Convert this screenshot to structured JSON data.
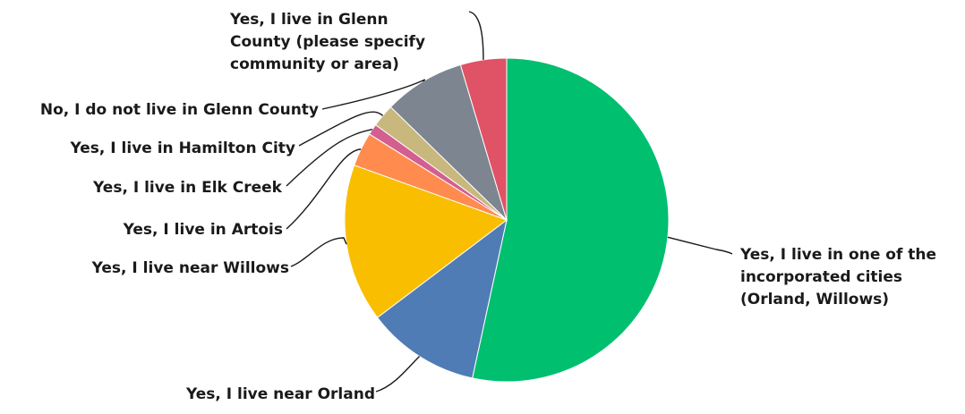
{
  "chart_data": {
    "type": "pie",
    "title": "",
    "legend": "none",
    "slices": [
      {
        "label_lines": [
          "Yes, I live in one of the",
          "incorporated cities",
          "(Orland, Willows)"
        ],
        "value": 53.4,
        "color": "#00BF6F"
      },
      {
        "label_lines": [
          "Yes, I live near Orland"
        ],
        "value": 11.3,
        "color": "#507CB6"
      },
      {
        "label_lines": [
          "Yes, I live near Willows"
        ],
        "value": 15.8,
        "color": "#F9BE00"
      },
      {
        "label_lines": [
          "Yes, I live in Artois"
        ],
        "value": 3.4,
        "color": "#FF8B4F"
      },
      {
        "label_lines": [
          "Yes, I live in Elk Creek"
        ],
        "value": 1.1,
        "color": "#D25F90"
      },
      {
        "label_lines": [
          "Yes, I live in Hamilton City"
        ],
        "value": 2.3,
        "color": "#C8B87E"
      },
      {
        "label_lines": [
          "No, I do not live in Glenn County"
        ],
        "value": 8.1,
        "color": "#7D8590"
      },
      {
        "label_lines": [
          "Yes, I live in Glenn",
          "County (please specify",
          "community or area)"
        ],
        "value": 4.6,
        "color": "#E05265"
      }
    ]
  }
}
